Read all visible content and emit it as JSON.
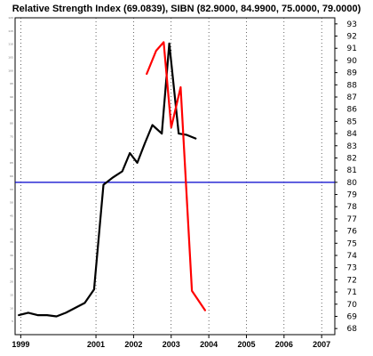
{
  "chart_data": {
    "type": "line",
    "title": "Relative Strength Index (69.0839), SIBN (82.9000, 84.9900, 75.0000, 79.0000)",
    "x_tick_labels": [
      "1999",
      "2001",
      "2002",
      "2003",
      "2004",
      "2005",
      "2006",
      "2007"
    ],
    "x_range": [
      1998.85,
      2007.35
    ],
    "right_axis": {
      "min": 68,
      "max": 93,
      "ticks": [
        68,
        69,
        70,
        71,
        72,
        73,
        74,
        75,
        76,
        77,
        78,
        79,
        80,
        81,
        82,
        83,
        84,
        85,
        86,
        87,
        88,
        89,
        90,
        91,
        92,
        93
      ]
    },
    "left_axis": {
      "min": 0,
      "max": 120,
      "ticks": [
        5,
        10,
        15,
        20,
        25,
        30,
        35,
        40,
        45,
        50,
        55,
        60,
        65,
        70,
        75,
        80,
        85,
        90,
        95,
        100,
        105,
        110,
        115,
        120
      ]
    },
    "horizontal_line": {
      "value": 80,
      "axis": "right",
      "color": "#0000cc"
    },
    "series": [
      {
        "axis": "right",
        "color": "#000000",
        "points": [
          [
            1998.95,
            69.1
          ],
          [
            1999.2,
            69.3
          ],
          [
            1999.45,
            69.1
          ],
          [
            1999.7,
            69.1
          ],
          [
            1999.95,
            69.0
          ],
          [
            2000.2,
            69.3
          ],
          [
            2000.45,
            69.7
          ],
          [
            2000.7,
            70.1
          ],
          [
            2000.95,
            71.2
          ],
          [
            2001.2,
            79.8
          ],
          [
            2001.45,
            80.4
          ],
          [
            2001.7,
            80.9
          ],
          [
            2001.9,
            82.4
          ],
          [
            2002.1,
            81.6
          ],
          [
            2002.3,
            83.2
          ],
          [
            2002.5,
            84.7
          ],
          [
            2002.75,
            84.0
          ],
          [
            2002.95,
            91.4
          ],
          [
            2003.2,
            84.0
          ],
          [
            2003.4,
            83.9
          ],
          [
            2003.65,
            83.6
          ]
        ]
      },
      {
        "axis": "right",
        "color": "#ff0000",
        "points": [
          [
            2002.35,
            88.9
          ],
          [
            2002.6,
            90.8
          ],
          [
            2002.8,
            91.5
          ],
          [
            2003.0,
            84.5
          ],
          [
            2003.25,
            87.8
          ],
          [
            2003.55,
            71.1
          ],
          [
            2003.9,
            69.5
          ]
        ]
      }
    ],
    "line_color_note": "black = RSI, red = price"
  }
}
